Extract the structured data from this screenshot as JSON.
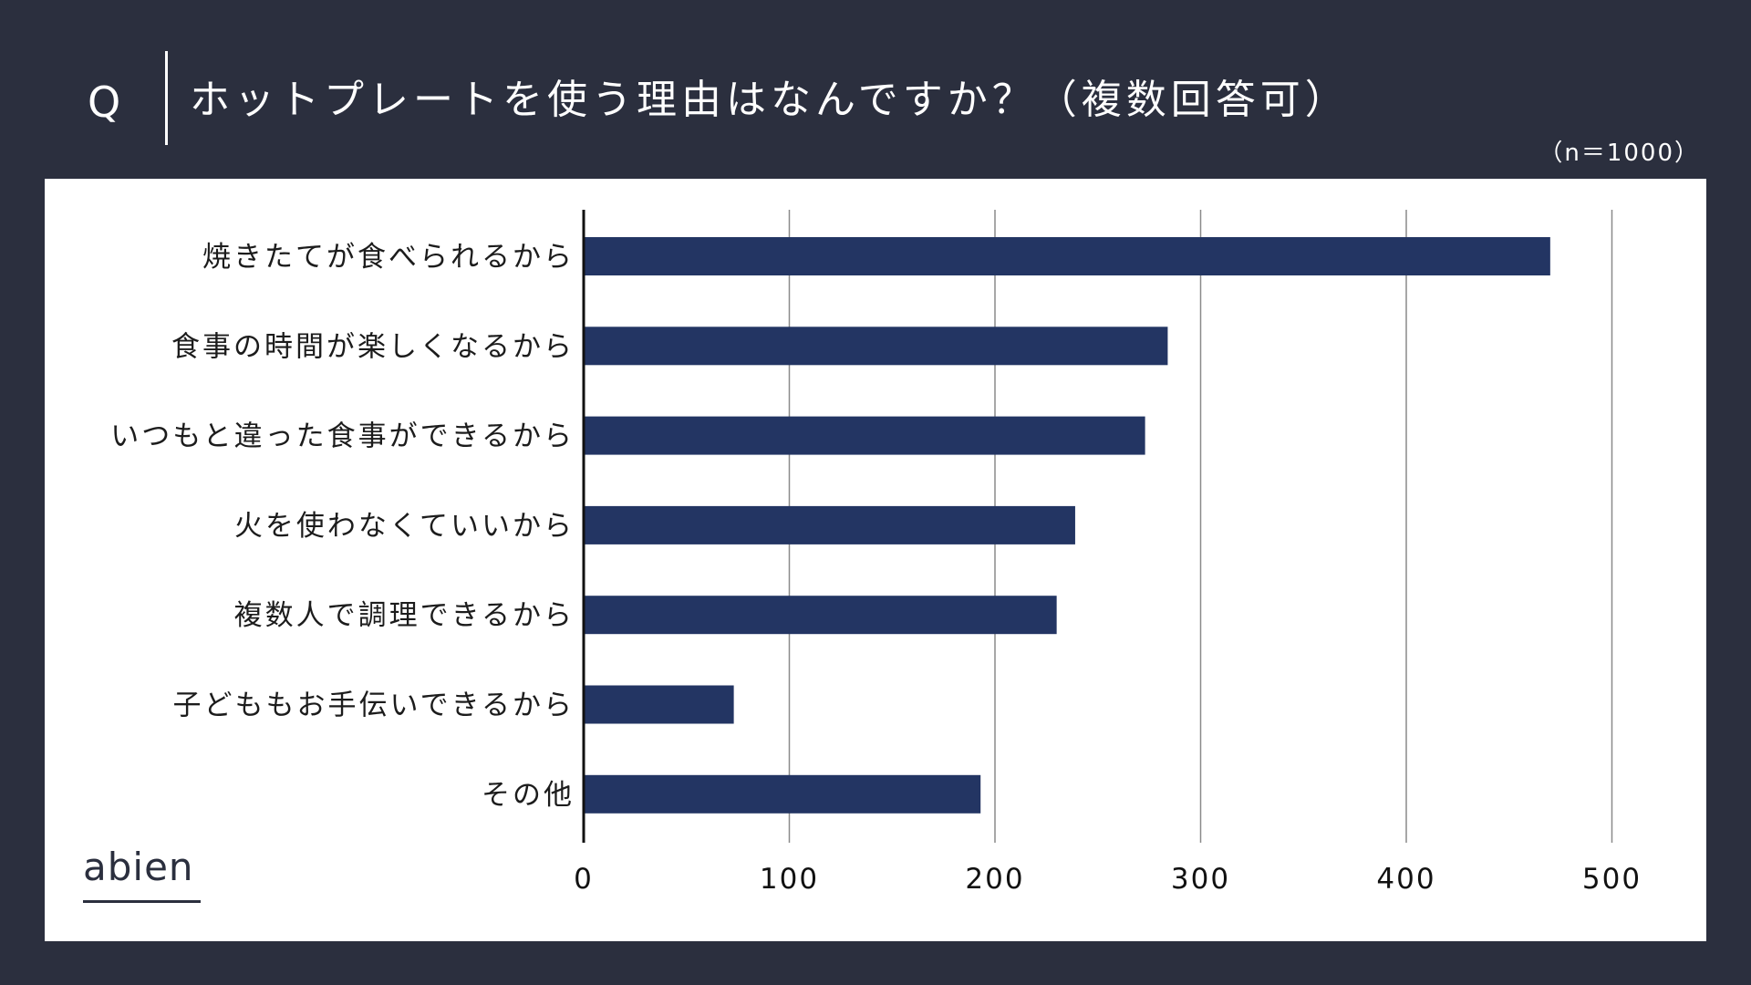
{
  "header": {
    "q_mark": "Q",
    "question": "ホットプレートを使う理由はなんですか？（複数回答可）",
    "sample_size": "（n＝1000）"
  },
  "logo": {
    "text": "abien"
  },
  "colors": {
    "background": "#2b2f3e",
    "panel": "#ffffff",
    "bar": "#233563"
  },
  "chart_data": {
    "type": "bar",
    "orientation": "horizontal",
    "categories": [
      "焼きたてが食べられるから",
      "食事の時間が楽しくなるから",
      "いつもと違った食事ができるから",
      "火を使わなくていいから",
      "複数人で調理できるから",
      "子どももお手伝いできるから",
      "その他"
    ],
    "values": [
      470,
      284,
      273,
      239,
      230,
      73,
      193
    ],
    "xlim": [
      0,
      500
    ],
    "xticks": [
      "0",
      "100",
      "200",
      "300",
      "400",
      "500"
    ],
    "grid": "vertical"
  }
}
